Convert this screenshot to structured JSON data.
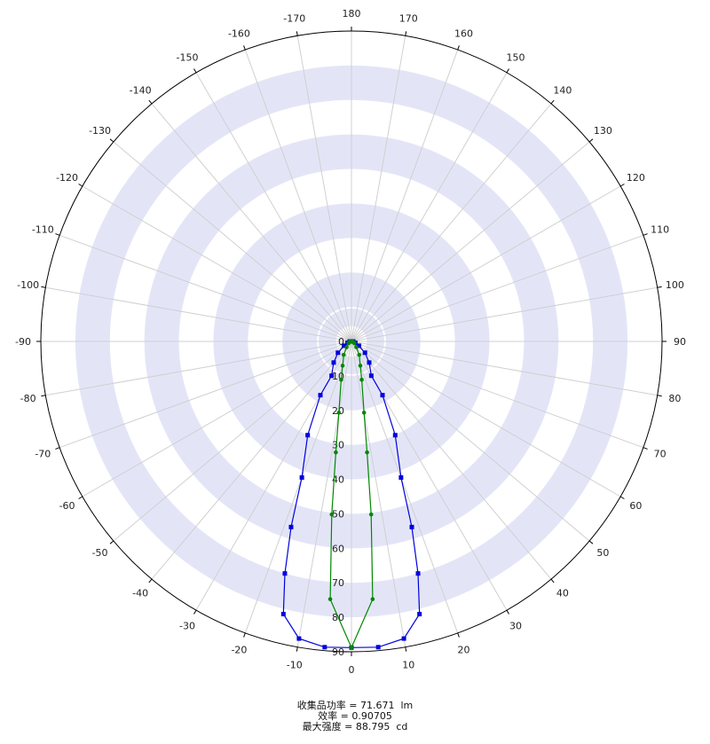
{
  "chart_data": {
    "type": "polar-line",
    "angle_ticks": [
      "0",
      "10",
      "20",
      "30",
      "40",
      "50",
      "60",
      "70",
      "80",
      "90",
      "100",
      "110",
      "120",
      "130",
      "140",
      "150",
      "160",
      "170",
      "180",
      "-170",
      "-160",
      "-150",
      "-140",
      "-130",
      "-120",
      "-110",
      "-100",
      "-90",
      "-80",
      "-70",
      "-60",
      "-50",
      "-40",
      "-30",
      "-20",
      "-10"
    ],
    "radial_ticks": [
      "0",
      "10",
      "20",
      "30",
      "40",
      "50",
      "60",
      "70",
      "80",
      "90"
    ],
    "radial_range": [
      0,
      90
    ],
    "angle_range": [
      -180,
      180
    ],
    "grid": true,
    "band_color": "#e3e5f7",
    "series": [
      {
        "color": "#0000dd",
        "marker": "square",
        "points": [
          {
            "angle": -90,
            "r": 0.5
          },
          {
            "angle": -70,
            "r": 1.2
          },
          {
            "angle": -60,
            "r": 2.5
          },
          {
            "angle": -50,
            "r": 5.1
          },
          {
            "angle": -40,
            "r": 8.0
          },
          {
            "angle": -30,
            "r": 11.5
          },
          {
            "angle": -30,
            "r": 18.0
          },
          {
            "angle": -25,
            "r": 30.0
          },
          {
            "angle": -20,
            "r": 42.0
          },
          {
            "angle": -18,
            "r": 56.6
          },
          {
            "angle": -16,
            "r": 70.0
          },
          {
            "angle": -14,
            "r": 81.5
          },
          {
            "angle": -10,
            "r": 87.5
          },
          {
            "angle": -5,
            "r": 89.0
          },
          {
            "angle": 0,
            "r": 88.8
          },
          {
            "angle": 5,
            "r": 89.0
          },
          {
            "angle": 10,
            "r": 87.5
          },
          {
            "angle": 14,
            "r": 81.5
          },
          {
            "angle": 16,
            "r": 70.0
          },
          {
            "angle": 18,
            "r": 56.6
          },
          {
            "angle": 20,
            "r": 42.0
          },
          {
            "angle": 25,
            "r": 30.0
          },
          {
            "angle": 30,
            "r": 18.0
          },
          {
            "angle": 30,
            "r": 11.5
          },
          {
            "angle": 40,
            "r": 8.0
          },
          {
            "angle": 50,
            "r": 5.1
          },
          {
            "angle": 60,
            "r": 2.5
          },
          {
            "angle": 70,
            "r": 1.2
          },
          {
            "angle": 90,
            "r": 0.5
          }
        ]
      },
      {
        "color": "#008800",
        "marker": "circle",
        "points": [
          {
            "angle": -90,
            "r": 0.4
          },
          {
            "angle": -60,
            "r": 1.0
          },
          {
            "angle": -40,
            "r": 2.2
          },
          {
            "angle": -30,
            "r": 4.5
          },
          {
            "angle": -20,
            "r": 7.5
          },
          {
            "angle": -15,
            "r": 11.5
          },
          {
            "angle": -10,
            "r": 21.0
          },
          {
            "angle": -8,
            "r": 32.5
          },
          {
            "angle": -6.5,
            "r": 50.5
          },
          {
            "angle": -4.7,
            "r": 75.0
          },
          {
            "angle": 0,
            "r": 88.8
          },
          {
            "angle": 4.7,
            "r": 75.0
          },
          {
            "angle": 6.5,
            "r": 50.5
          },
          {
            "angle": 8,
            "r": 32.5
          },
          {
            "angle": 10,
            "r": 21.0
          },
          {
            "angle": 15,
            "r": 11.5
          },
          {
            "angle": 20,
            "r": 7.5
          },
          {
            "angle": 30,
            "r": 4.5
          },
          {
            "angle": 40,
            "r": 2.2
          },
          {
            "angle": 60,
            "r": 1.0
          },
          {
            "angle": 90,
            "r": 0.4
          }
        ]
      }
    ]
  },
  "summary": {
    "line1": "收集品功率 = 71.671  lm",
    "line2": "效率 = 0.90705",
    "line3": "最大强度 = 88.795  cd"
  }
}
